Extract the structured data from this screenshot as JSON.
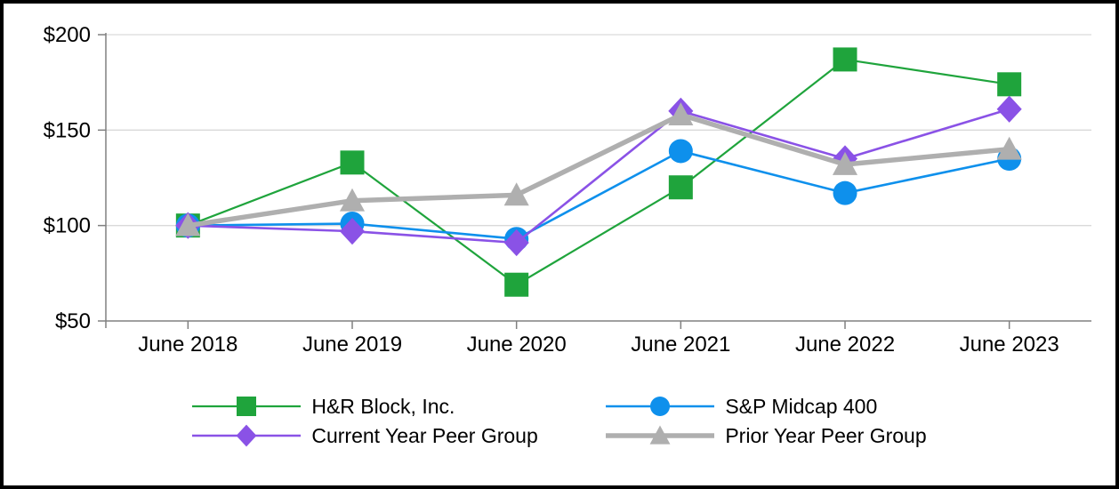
{
  "chart_data": {
    "type": "line",
    "title": "",
    "xlabel": "",
    "ylabel": "",
    "x_categories": [
      "June 2018",
      "June 2019",
      "June 2020",
      "June 2021",
      "June 2022",
      "June 2023"
    ],
    "y_tick_labels": [
      "$200",
      "$150",
      "$100",
      "$50"
    ],
    "y_tick_values": [
      200,
      150,
      100,
      50
    ],
    "ylim": [
      50,
      200
    ],
    "grid": true,
    "legend_position": "bottom",
    "series": [
      {
        "name": "H&R Block, Inc.",
        "color": "#1FA43C",
        "marker": "square",
        "line_width": 2.2,
        "values": [
          100,
          133,
          69,
          120,
          187,
          174
        ]
      },
      {
        "name": "S&P Midcap 400",
        "color": "#0E90EC",
        "marker": "circle",
        "line_width": 2.6,
        "values": [
          100,
          101,
          93,
          139,
          117,
          135
        ]
      },
      {
        "name": "Current Year Peer Group",
        "color": "#8A52E6",
        "marker": "diamond",
        "line_width": 2.6,
        "values": [
          100,
          97,
          91,
          160,
          135,
          161
        ]
      },
      {
        "name": "Prior Year Peer Group",
        "color": "#AFAFAF",
        "marker": "triangle",
        "line_width": 5.5,
        "values": [
          100,
          113,
          116,
          158,
          132,
          140
        ]
      }
    ]
  },
  "styles": {
    "background": "#FFFFFF",
    "border_color": "#000000",
    "grid_color": "#D9D9D9",
    "axis_color": "#808080",
    "text_color": "#000000"
  }
}
